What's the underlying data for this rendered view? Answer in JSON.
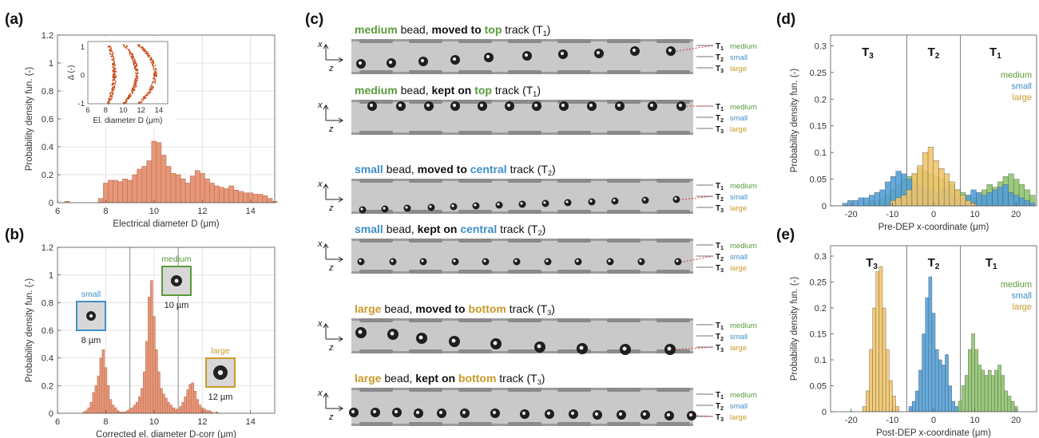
{
  "panel_labels": {
    "a": "(a)",
    "b": "(b)",
    "c": "(c)",
    "d": "(d)",
    "e": "(e)"
  },
  "colors": {
    "bar_a": "#e89678",
    "green": "#5a9a3a",
    "blue": "#3f8fca",
    "orange": "#c99a2a",
    "hist_green": "#8cc46a",
    "hist_blue": "#4e9ed9",
    "hist_yellow": "#f2c566",
    "dot": "#c8501e"
  },
  "class_names": {
    "medium": "medium",
    "small": "small",
    "large": "large"
  },
  "tracks": {
    "t1": "T",
    "t2": "T",
    "t3": "T",
    "s1": "1",
    "s2": "2",
    "s3": "3"
  },
  "panel_c": {
    "axis_x": "x",
    "axis_z": "z",
    "rows": [
      {
        "cls": "medium",
        "color": "green",
        "mid1": " bead, ",
        "action": "moved to",
        "mid2": " ",
        "target": "top",
        "end": " track (T",
        "sub": "1",
        "close": ")"
      },
      {
        "cls": "medium",
        "color": "green",
        "mid1": " bead, ",
        "action": "kept on",
        "mid2": " ",
        "target": "top",
        "end": " track (T",
        "sub": "1",
        "close": ")"
      },
      {
        "cls": "small",
        "color": "blue",
        "mid1": " bead, ",
        "action": "moved to",
        "mid2": " ",
        "target": "central",
        "end": " track (T",
        "sub": "2",
        "close": ")"
      },
      {
        "cls": "small",
        "color": "blue",
        "mid1": " bead, ",
        "action": "kept on",
        "mid2": " ",
        "target": "central",
        "end": " track (T",
        "sub": "2",
        "close": ")"
      },
      {
        "cls": "large",
        "color": "orange",
        "mid1": " bead, ",
        "action": "moved to",
        "mid2": " ",
        "target": "bottom",
        "end": " track (T",
        "sub": "3",
        "close": ")"
      },
      {
        "cls": "large",
        "color": "orange",
        "mid1": " bead, ",
        "action": "kept on",
        "mid2": " ",
        "target": "bottom",
        "end": " track (T",
        "sub": "3",
        "close": ")"
      }
    ]
  },
  "inset_b": {
    "small_size": "8 µm",
    "medium_size": "10 µm",
    "large_size": "12 µm"
  },
  "chart_data": [
    {
      "id": "a",
      "type": "bar",
      "xlabel": "Electrical diameter D (μm)",
      "ylabel": "Probability density fun. (-)",
      "xlim": [
        6,
        15
      ],
      "ylim": [
        0,
        1.2
      ],
      "xticks": [
        6,
        8,
        10,
        12,
        14
      ],
      "yticks": [
        0,
        0.2,
        0.4,
        0.6,
        0.8,
        1.0,
        1.2
      ],
      "grid": true,
      "bin_width": 0.2,
      "bins": [
        [
          6.4,
          0.01
        ],
        [
          7.8,
          0.03
        ],
        [
          8.0,
          0.14
        ],
        [
          8.2,
          0.16
        ],
        [
          8.4,
          0.16
        ],
        [
          8.6,
          0.15
        ],
        [
          8.8,
          0.17
        ],
        [
          9.0,
          0.16
        ],
        [
          9.2,
          0.2
        ],
        [
          9.4,
          0.24
        ],
        [
          9.6,
          0.26
        ],
        [
          9.8,
          0.3
        ],
        [
          10.0,
          0.44
        ],
        [
          10.2,
          0.43
        ],
        [
          10.4,
          0.34
        ],
        [
          10.6,
          0.26
        ],
        [
          10.8,
          0.21
        ],
        [
          11.0,
          0.2
        ],
        [
          11.2,
          0.17
        ],
        [
          11.4,
          0.14
        ],
        [
          11.6,
          0.19
        ],
        [
          11.8,
          0.23
        ],
        [
          12.0,
          0.21
        ],
        [
          12.2,
          0.17
        ],
        [
          12.4,
          0.14
        ],
        [
          12.6,
          0.12
        ],
        [
          12.8,
          0.11
        ],
        [
          13.0,
          0.1
        ],
        [
          13.2,
          0.12
        ],
        [
          13.4,
          0.09
        ],
        [
          13.6,
          0.08
        ],
        [
          13.8,
          0.07
        ],
        [
          14.0,
          0.07
        ],
        [
          14.2,
          0.06
        ],
        [
          14.4,
          0.06
        ],
        [
          14.6,
          0.05
        ],
        [
          14.8,
          0.03
        ],
        [
          15.0,
          0.01
        ]
      ]
    },
    {
      "id": "a-inset",
      "type": "scatter",
      "xlabel": "El. diameter D (μm)",
      "ylabel": "Δ (-)",
      "xlim": [
        6,
        15
      ],
      "ylim": [
        -1,
        1.2
      ],
      "xticks": [
        6,
        8,
        10,
        12,
        14
      ],
      "yticks": [
        -1,
        0,
        1
      ],
      "arcs": [
        {
          "d_center": 8.3,
          "d_peak": 9.0,
          "dy": 1.0
        },
        {
          "d_center": 10.1,
          "d_peak": 11.5,
          "dy": 0.95
        },
        {
          "d_center": 11.7,
          "d_peak": 13.6,
          "dy": 0.85
        }
      ]
    },
    {
      "id": "b",
      "type": "bar",
      "xlabel": "Corrected el. diameter D-corr (μm)",
      "ylabel": "Probability density fun. (-)",
      "xlim": [
        6,
        15
      ],
      "ylim": [
        0,
        1.2
      ],
      "xticks": [
        6,
        8,
        10,
        12,
        14
      ],
      "yticks": [
        0,
        0.2,
        0.4,
        0.6,
        0.8,
        1.0,
        1.2
      ],
      "vlines": [
        9.0,
        11.0
      ],
      "grid": true,
      "bin_width": 0.1,
      "bins": [
        [
          7.1,
          0.01
        ],
        [
          7.2,
          0.02
        ],
        [
          7.3,
          0.04
        ],
        [
          7.4,
          0.08
        ],
        [
          7.5,
          0.15
        ],
        [
          7.6,
          0.2
        ],
        [
          7.7,
          0.27
        ],
        [
          7.8,
          0.4
        ],
        [
          7.9,
          0.46
        ],
        [
          8.0,
          0.33
        ],
        [
          8.1,
          0.2
        ],
        [
          8.2,
          0.1
        ],
        [
          8.3,
          0.06
        ],
        [
          8.4,
          0.04
        ],
        [
          8.5,
          0.02
        ],
        [
          8.6,
          0.01
        ],
        [
          8.7,
          0.01
        ],
        [
          8.8,
          0.01
        ],
        [
          8.9,
          0.02
        ],
        [
          9.0,
          0.03
        ],
        [
          9.1,
          0.04
        ],
        [
          9.2,
          0.06
        ],
        [
          9.3,
          0.08
        ],
        [
          9.4,
          0.12
        ],
        [
          9.5,
          0.18
        ],
        [
          9.6,
          0.3
        ],
        [
          9.7,
          0.52
        ],
        [
          9.8,
          0.84
        ],
        [
          9.9,
          0.96
        ],
        [
          10.0,
          0.7
        ],
        [
          10.1,
          0.46
        ],
        [
          10.2,
          0.3
        ],
        [
          10.3,
          0.18
        ],
        [
          10.4,
          0.14
        ],
        [
          10.5,
          0.11
        ],
        [
          10.6,
          0.08
        ],
        [
          10.7,
          0.06
        ],
        [
          10.8,
          0.04
        ],
        [
          10.9,
          0.03
        ],
        [
          11.0,
          0.03
        ],
        [
          11.1,
          0.05
        ],
        [
          11.2,
          0.08
        ],
        [
          11.3,
          0.12
        ],
        [
          11.4,
          0.17
        ],
        [
          11.5,
          0.21
        ],
        [
          11.6,
          0.22
        ],
        [
          11.7,
          0.16
        ],
        [
          11.8,
          0.1
        ],
        [
          11.9,
          0.06
        ],
        [
          12.0,
          0.04
        ],
        [
          12.1,
          0.03
        ],
        [
          12.2,
          0.02
        ],
        [
          12.3,
          0.02
        ],
        [
          12.4,
          0.01
        ],
        [
          12.6,
          0.01
        ]
      ]
    },
    {
      "id": "d",
      "type": "bar",
      "xlabel": "Pre-DEP x-coordinate (μm)",
      "ylabel": "Probability density fun. (-)",
      "xlim": [
        -25,
        25
      ],
      "ylim": [
        0,
        0.32
      ],
      "xticks": [
        -20,
        -10,
        0,
        10,
        20
      ],
      "yticks": [
        0,
        0.05,
        0.1,
        0.15,
        0.2,
        0.25,
        0.3
      ],
      "vlines": [
        -6.5,
        6.5
      ],
      "region_labels": [
        {
          "x": -16,
          "t": "T",
          "s": "3"
        },
        {
          "x": 0,
          "t": "T",
          "s": "2"
        },
        {
          "x": 15,
          "t": "T",
          "s": "1"
        }
      ],
      "legend": [
        "medium",
        "small",
        "large"
      ],
      "bin_width": 1.3,
      "series": [
        {
          "name": "medium",
          "color_key": "hist_green",
          "bins": [
            [
              -16.3,
              0.005
            ],
            [
              -15.0,
              0.01
            ],
            [
              -13.7,
              0.01
            ],
            [
              -12.4,
              0.015
            ],
            [
              -11.1,
              0.02
            ],
            [
              -9.8,
              0.03
            ],
            [
              -8.5,
              0.04
            ],
            [
              -7.2,
              0.05
            ],
            [
              -5.9,
              0.055
            ],
            [
              -4.6,
              0.06
            ],
            [
              -3.3,
              0.07
            ],
            [
              -2.0,
              0.065
            ],
            [
              -0.7,
              0.06
            ],
            [
              0.6,
              0.055
            ],
            [
              1.9,
              0.05
            ],
            [
              3.2,
              0.045
            ],
            [
              4.5,
              0.04
            ],
            [
              5.8,
              0.03
            ],
            [
              7.1,
              0.025
            ],
            [
              8.4,
              0.02
            ],
            [
              9.7,
              0.015
            ],
            [
              11.0,
              0.02
            ],
            [
              12.3,
              0.03
            ],
            [
              13.6,
              0.04
            ],
            [
              14.9,
              0.035
            ],
            [
              16.2,
              0.045
            ],
            [
              17.5,
              0.055
            ],
            [
              18.8,
              0.06
            ],
            [
              20.1,
              0.05
            ],
            [
              21.4,
              0.04
            ],
            [
              22.7,
              0.03
            ],
            [
              24.0,
              0.02
            ]
          ]
        },
        {
          "name": "small",
          "color_key": "hist_blue",
          "bins": [
            [
              -21.5,
              0.005
            ],
            [
              -20.2,
              0.01
            ],
            [
              -18.9,
              0.01
            ],
            [
              -17.6,
              0.015
            ],
            [
              -16.3,
              0.015
            ],
            [
              -15.0,
              0.02
            ],
            [
              -13.7,
              0.025
            ],
            [
              -12.4,
              0.03
            ],
            [
              -11.1,
              0.045
            ],
            [
              -9.8,
              0.055
            ],
            [
              -8.5,
              0.065
            ],
            [
              -7.2,
              0.06
            ],
            [
              -5.9,
              0.05
            ],
            [
              -4.6,
              0.045
            ],
            [
              -3.3,
              0.04
            ],
            [
              -2.0,
              0.035
            ],
            [
              -0.7,
              0.03
            ],
            [
              0.6,
              0.025
            ],
            [
              1.9,
              0.03
            ],
            [
              3.2,
              0.035
            ],
            [
              4.5,
              0.025
            ],
            [
              5.8,
              0.02
            ],
            [
              7.1,
              0.015
            ],
            [
              8.4,
              0.02
            ],
            [
              9.7,
              0.03
            ],
            [
              11.0,
              0.025
            ],
            [
              12.3,
              0.02
            ],
            [
              13.6,
              0.025
            ],
            [
              14.9,
              0.03
            ],
            [
              16.2,
              0.035
            ],
            [
              17.5,
              0.04
            ],
            [
              18.8,
              0.025
            ],
            [
              20.1,
              0.02
            ],
            [
              21.4,
              0.015
            ],
            [
              22.7,
              0.01
            ],
            [
              24.0,
              0.005
            ]
          ]
        },
        {
          "name": "large",
          "color_key": "hist_yellow",
          "bins": [
            [
              -9.8,
              0.01
            ],
            [
              -8.5,
              0.015
            ],
            [
              -7.2,
              0.02
            ],
            [
              -5.9,
              0.03
            ],
            [
              -4.6,
              0.06
            ],
            [
              -3.3,
              0.075
            ],
            [
              -2.0,
              0.1
            ],
            [
              -0.7,
              0.11
            ],
            [
              0.6,
              0.085
            ],
            [
              1.9,
              0.07
            ],
            [
              3.2,
              0.06
            ],
            [
              4.5,
              0.045
            ],
            [
              5.8,
              0.03
            ],
            [
              7.1,
              0.02
            ],
            [
              8.4,
              0.01
            ],
            [
              9.7,
              0.005
            ]
          ]
        }
      ]
    },
    {
      "id": "e",
      "type": "bar",
      "xlabel": "Post-DEP x-coordinate (μm)",
      "ylabel": "Probability density fun. (-)",
      "xlim": [
        -25,
        25
      ],
      "ylim": [
        0,
        0.32
      ],
      "xticks": [
        -20,
        -10,
        0,
        10,
        20
      ],
      "yticks": [
        0,
        0.05,
        0.1,
        0.15,
        0.2,
        0.25,
        0.3
      ],
      "vlines": [
        -6.5,
        6.5
      ],
      "region_labels": [
        {
          "x": -15,
          "t": "T",
          "s": "3"
        },
        {
          "x": 0,
          "t": "T",
          "s": "2"
        },
        {
          "x": 14,
          "t": "T",
          "s": "1"
        }
      ],
      "legend": [
        "medium",
        "small",
        "large"
      ],
      "bin_width": 0.8,
      "series": [
        {
          "name": "large",
          "color_key": "hist_yellow",
          "bins": [
            [
              -16.8,
              0.01
            ],
            [
              -16.0,
              0.04
            ],
            [
              -15.2,
              0.12
            ],
            [
              -14.4,
              0.2
            ],
            [
              -13.6,
              0.27
            ],
            [
              -12.8,
              0.28
            ],
            [
              -12.0,
              0.2
            ],
            [
              -11.2,
              0.12
            ],
            [
              -10.4,
              0.06
            ],
            [
              -9.6,
              0.03
            ],
            [
              -8.8,
              0.01
            ]
          ]
        },
        {
          "name": "small",
          "color_key": "hist_blue",
          "bins": [
            [
              -5.6,
              0.01
            ],
            [
              -4.8,
              0.02
            ],
            [
              -4.0,
              0.04
            ],
            [
              -3.2,
              0.08
            ],
            [
              -2.4,
              0.15
            ],
            [
              -1.6,
              0.22
            ],
            [
              -0.8,
              0.26
            ],
            [
              0.0,
              0.19
            ],
            [
              0.8,
              0.12
            ],
            [
              1.6,
              0.1
            ],
            [
              2.4,
              0.09
            ],
            [
              3.2,
              0.11
            ],
            [
              4.0,
              0.05
            ],
            [
              4.8,
              0.02
            ],
            [
              5.6,
              0.01
            ]
          ]
        },
        {
          "name": "medium",
          "color_key": "hist_green",
          "bins": [
            [
              6.4,
              0.02
            ],
            [
              7.2,
              0.05
            ],
            [
              8.0,
              0.07
            ],
            [
              8.8,
              0.12
            ],
            [
              9.6,
              0.15
            ],
            [
              10.4,
              0.12
            ],
            [
              11.2,
              0.09
            ],
            [
              12.0,
              0.08
            ],
            [
              12.8,
              0.07
            ],
            [
              13.6,
              0.08
            ],
            [
              14.4,
              0.07
            ],
            [
              15.2,
              0.08
            ],
            [
              16.0,
              0.09
            ],
            [
              16.8,
              0.07
            ],
            [
              17.6,
              0.04
            ],
            [
              18.4,
              0.03
            ],
            [
              19.2,
              0.02
            ],
            [
              20.0,
              0.01
            ]
          ]
        }
      ]
    }
  ]
}
